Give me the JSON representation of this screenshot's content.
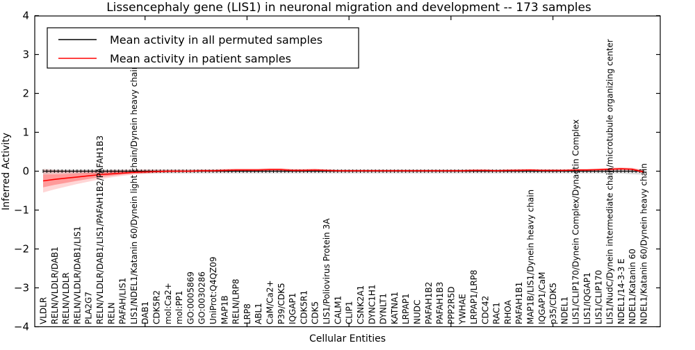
{
  "chart_data": {
    "type": "line",
    "title": "Lissencephaly gene (LIS1) in neuronal migration and development -- 173 samples",
    "xlabel": "Cellular Entities",
    "ylabel": "Inferred Activity",
    "ylim": [
      -4,
      4
    ],
    "yticks": [
      4,
      3,
      2,
      1,
      0,
      -1,
      -2,
      -3,
      -4
    ],
    "grid": false,
    "legend_position": "upper left",
    "categories": [
      "VLDLR",
      "RELN/VLDLR/DAB1",
      "RELN/VLDLR",
      "RELN/VLDLR/DAB1/LIS1",
      "PLA2G7",
      "RELN/VLDLR/DAB1/LIS1/PAFAH1B2/PAFAH1B3",
      "RELN",
      "PAFAH/LIS1",
      "LIS1/NDEL1/Katanin 60/Dynein light chain/Dynein heavy chain",
      "DAB1",
      "CDK5R2",
      "mol:Ca2+",
      "mol:PP1",
      "GO:0005869",
      "GO:0030286",
      "UniProt:Q4QZ09",
      "MAP1B",
      "RELN/LRP8",
      "LRP8",
      "ABL1",
      "CaM/Ca2+",
      "P39/CDK5",
      "IQGAP1",
      "CDK5R1",
      "CDK5",
      "LIS1/Poliovirus Protein 3A",
      "CALM1",
      "CLIP1",
      "CSNK2A1",
      "DYNC1H1",
      "DYNLT1",
      "KATNA1",
      "LRPAP1",
      "NUDC",
      "PAFAH1B2",
      "PAFAH1B3",
      "PPP2R5D",
      "YWHAE",
      "LRPAP1/LRP8",
      "CDC42",
      "RAC1",
      "RHOA",
      "PAFAH1B1",
      "MAP1B/LIS1/Dynein heavy chain",
      "IQGAP1/CaM",
      "p35/CDK5",
      "NDEL1",
      "LIS1/CLIP170/Dynein Complex/Dynactin Complex",
      "LIS1/IQGAP1",
      "LIS1/CLIP170",
      "LIS1/NudC/Dynein intermediate chain/microtubule organizing center",
      "NDEL1/14-3-3 E",
      "NDEL1/Katanin 60",
      "NDEL1/Katanin 60/Dynein heavy chain"
    ],
    "series": [
      {
        "name": "Mean activity in all permuted samples",
        "color": "#000000",
        "values": [
          0,
          0,
          0,
          0,
          0,
          0,
          0,
          0,
          0,
          0,
          0,
          0,
          0,
          0,
          0,
          0,
          0,
          0,
          0,
          0,
          0,
          0,
          0,
          0,
          0,
          0,
          0,
          0,
          0,
          0,
          0,
          0,
          0,
          0,
          0,
          0,
          0,
          0,
          0,
          0,
          0,
          0,
          0,
          0,
          0,
          0,
          0,
          0,
          0,
          0,
          0,
          0,
          0,
          0
        ],
        "band_lo": [
          -0.08,
          -0.06,
          -0.06,
          -0.06,
          -0.06,
          -0.06,
          -0.06,
          -0.06,
          -0.06,
          -0.06,
          -0.06,
          -0.06,
          -0.06,
          -0.06,
          -0.06,
          -0.06,
          -0.06,
          -0.06,
          -0.06,
          -0.06,
          -0.06,
          -0.06,
          -0.06,
          -0.06,
          -0.06,
          -0.06,
          -0.06,
          -0.06,
          -0.06,
          -0.06,
          -0.06,
          -0.06,
          -0.06,
          -0.06,
          -0.06,
          -0.06,
          -0.06,
          -0.06,
          -0.06,
          -0.06,
          -0.06,
          -0.06,
          -0.06,
          -0.06,
          -0.06,
          -0.06,
          -0.06,
          -0.06,
          -0.06,
          -0.06,
          -0.06,
          -0.06,
          -0.08,
          -0.09
        ],
        "band_hi": [
          0.06,
          0.05,
          0.05,
          0.05,
          0.05,
          0.05,
          0.05,
          0.05,
          0.05,
          0.05,
          0.05,
          0.05,
          0.05,
          0.05,
          0.05,
          0.05,
          0.05,
          0.05,
          0.05,
          0.05,
          0.05,
          0.05,
          0.05,
          0.05,
          0.05,
          0.05,
          0.05,
          0.05,
          0.05,
          0.05,
          0.05,
          0.05,
          0.05,
          0.05,
          0.05,
          0.05,
          0.05,
          0.05,
          0.05,
          0.05,
          0.05,
          0.05,
          0.05,
          0.05,
          0.05,
          0.05,
          0.05,
          0.05,
          0.05,
          0.05,
          0.05,
          0.05,
          0.05,
          0.04
        ]
      },
      {
        "name": "Mean activity in patient samples",
        "color": "#ff0000",
        "values": [
          -0.25,
          -0.21,
          -0.18,
          -0.15,
          -0.12,
          -0.09,
          -0.07,
          -0.05,
          -0.03,
          -0.02,
          -0.01,
          0,
          0,
          0,
          0.01,
          0.01,
          0.02,
          0.03,
          0.03,
          0.03,
          0.04,
          0.04,
          0.02,
          0.02,
          0.03,
          0.02,
          0.01,
          0.01,
          0.01,
          0.01,
          0.01,
          0.01,
          0.01,
          0.01,
          0.01,
          0.01,
          0.01,
          0.01,
          0.02,
          0.02,
          0.01,
          0.02,
          0.02,
          0.03,
          0.02,
          0.02,
          0.02,
          0.03,
          0.03,
          0.04,
          0.05,
          0.06,
          0.05,
          -0.02
        ],
        "band_lo": [
          -0.55,
          -0.47,
          -0.4,
          -0.33,
          -0.27,
          -0.21,
          -0.16,
          -0.12,
          -0.09,
          -0.07,
          -0.05,
          -0.04,
          -0.03,
          -0.03,
          -0.02,
          -0.02,
          -0.02,
          -0.01,
          -0.01,
          -0.01,
          0,
          0,
          -0.01,
          -0.01,
          0,
          -0.01,
          -0.01,
          -0.01,
          -0.01,
          -0.01,
          -0.01,
          -0.01,
          -0.01,
          -0.01,
          -0.01,
          -0.01,
          -0.01,
          -0.01,
          -0.01,
          -0.01,
          -0.01,
          -0.01,
          0,
          0,
          -0.01,
          -0.01,
          0,
          0,
          0,
          0.01,
          0.01,
          0.02,
          0.01,
          -0.06
        ],
        "band_hi": [
          0.05,
          0.03,
          0.02,
          0.02,
          0.02,
          0.02,
          0.03,
          0.03,
          0.04,
          0.04,
          0.04,
          0.04,
          0.04,
          0.04,
          0.05,
          0.05,
          0.06,
          0.07,
          0.07,
          0.07,
          0.08,
          0.08,
          0.06,
          0.06,
          0.07,
          0.05,
          0.04,
          0.04,
          0.04,
          0.04,
          0.04,
          0.04,
          0.04,
          0.04,
          0.04,
          0.04,
          0.04,
          0.04,
          0.05,
          0.05,
          0.04,
          0.05,
          0.06,
          0.06,
          0.05,
          0.05,
          0.05,
          0.06,
          0.06,
          0.07,
          0.09,
          0.1,
          0.09,
          0.04
        ]
      }
    ]
  },
  "colors": {
    "band_permuted": "#000000",
    "band_patient": "#ff0000",
    "axis": "#000000"
  }
}
